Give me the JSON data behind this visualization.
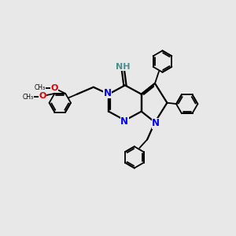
{
  "background_color": "#e8e8e8",
  "bond_color": "#000000",
  "n_color": "#0000ee",
  "o_color": "#dd0000",
  "h_color": "#4a9090",
  "figsize": [
    3.0,
    3.0
  ],
  "dpi": 100,
  "xlim": [
    0,
    10
  ],
  "ylim": [
    0,
    10
  ]
}
